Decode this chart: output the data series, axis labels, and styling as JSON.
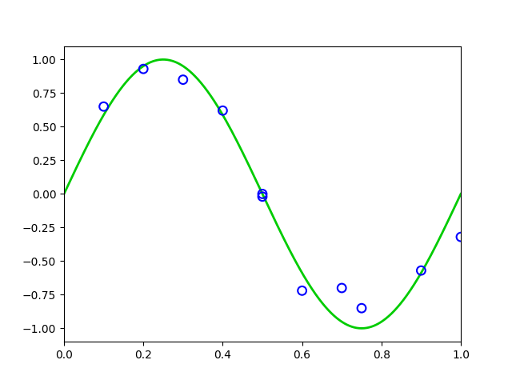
{
  "curve_color": "#00cc00",
  "curve_linewidth": 2.0,
  "scatter_color": "blue",
  "scatter_marker": "o",
  "scatter_facecolor": "none",
  "scatter_edgewidth": 1.5,
  "scatter_size": 60,
  "x_points": [
    0.1,
    0.2,
    0.3,
    0.4,
    0.5,
    0.5,
    0.6,
    0.7,
    0.75,
    0.9,
    1.0
  ],
  "y_points": [
    0.65,
    0.93,
    0.85,
    0.62,
    0.0,
    -0.02,
    -0.72,
    -0.7,
    -0.85,
    -0.57,
    -0.32
  ],
  "xlim": [
    0.0,
    1.0
  ],
  "ylim": [
    -1.1,
    1.1
  ],
  "xticks": [
    0.0,
    0.2,
    0.4,
    0.6,
    0.8,
    1.0
  ],
  "yticks": [
    -1.0,
    -0.75,
    -0.5,
    -0.25,
    0.0,
    0.25,
    0.5,
    0.75,
    1.0
  ],
  "background_color": "#ffffff"
}
